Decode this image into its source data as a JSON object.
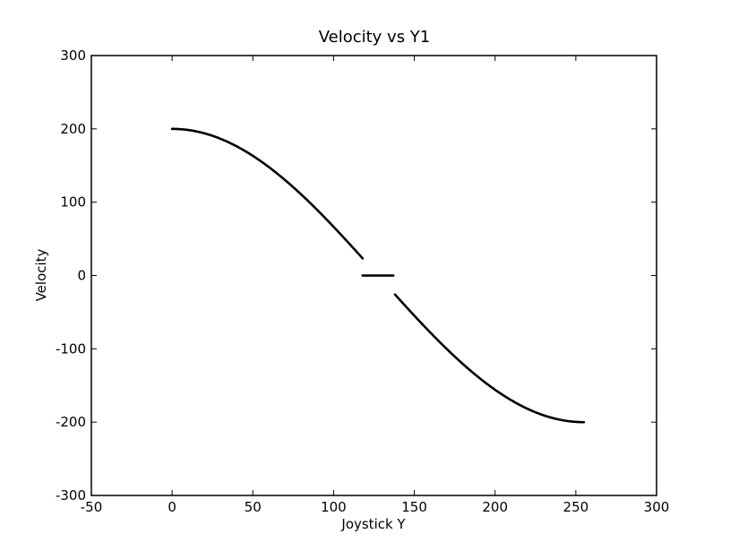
{
  "chart_data": {
    "type": "scatter",
    "title": "Velocity vs Y1",
    "xlabel": "Joystick Y",
    "ylabel": "Velocity",
    "xlim": [
      -50,
      300
    ],
    "ylim": [
      -300,
      300
    ],
    "xticks": [
      -50,
      0,
      50,
      100,
      150,
      200,
      250,
      300
    ],
    "yticks": [
      -300,
      -200,
      -100,
      0,
      100,
      200,
      300
    ],
    "grid": false,
    "legend": "none",
    "series_color": "#000000",
    "series": [
      {
        "segments": [
          {
            "x_start": 0,
            "x_end": 118,
            "formula": "200*cos(pi*x/255)"
          },
          {
            "x_start": 118,
            "x_end": 137,
            "constant": 0
          },
          {
            "x_start": 138,
            "x_end": 255,
            "formula": "200*cos(pi*x/255)"
          }
        ]
      }
    ]
  }
}
